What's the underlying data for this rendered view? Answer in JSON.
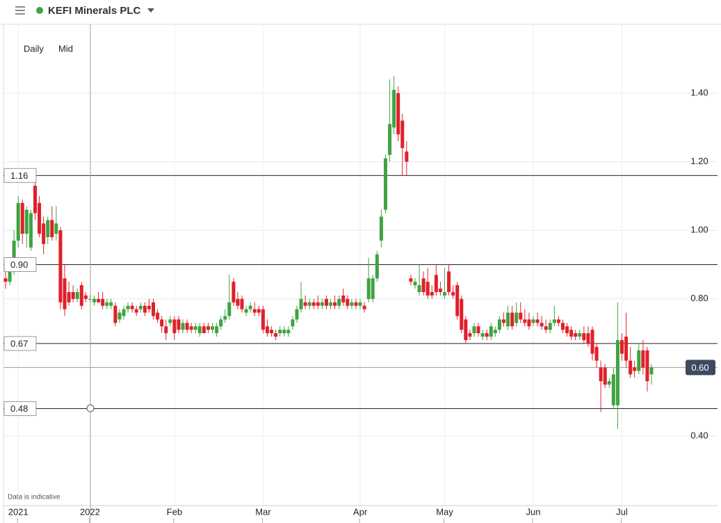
{
  "chart_data": {
    "type": "candlestick",
    "title": "KEFI Minerals PLC",
    "interval": "Daily",
    "price_type": "Mid",
    "footnote": "Data is indicative",
    "up_color": "#3fa33f",
    "down_color": "#e0202a",
    "ylim": [
      0.2,
      1.6
    ],
    "yticks": [
      {
        "value": 0.4,
        "label": "0.40"
      },
      {
        "value": 0.8,
        "label": "0.80"
      },
      {
        "value": 1.0,
        "label": "1.00"
      },
      {
        "value": 1.2,
        "label": "1.20"
      },
      {
        "value": 1.4,
        "label": "1.40"
      }
    ],
    "grid": true,
    "levels": [
      {
        "value": 1.16,
        "label": "1.16"
      },
      {
        "value": 0.9,
        "label": "0.90"
      },
      {
        "value": 0.67,
        "label": "0.67"
      },
      {
        "value": 0.48,
        "label": "0.48"
      }
    ],
    "last_price": {
      "value": 0.6,
      "label": "0.60"
    },
    "categories": [
      null,
      null,
      null,
      "2021",
      null,
      null,
      null,
      null,
      null,
      null,
      null,
      null,
      null,
      null,
      null,
      null,
      null,
      null,
      null,
      null,
      "2022",
      null,
      null,
      null,
      null,
      null,
      null,
      null,
      null,
      null,
      null,
      null,
      null,
      null,
      null,
      null,
      null,
      null,
      null,
      null,
      "Feb",
      null,
      null,
      null,
      null,
      null,
      null,
      null,
      null,
      null,
      null,
      null,
      null,
      null,
      null,
      null,
      null,
      null,
      null,
      null,
      null,
      "Mar",
      null,
      null,
      null,
      null,
      null,
      null,
      null,
      null,
      null,
      null,
      null,
      null,
      null,
      null,
      null,
      null,
      null,
      null,
      null,
      null,
      null,
      null,
      "Apr",
      null,
      null,
      null,
      null,
      null,
      null,
      null,
      null,
      null,
      null,
      null,
      null,
      null,
      null,
      null,
      null,
      null,
      null,
      null,
      "May",
      null,
      null,
      null,
      null,
      null,
      null,
      null,
      null,
      null,
      null,
      null,
      null,
      null,
      null,
      null,
      null,
      null,
      null,
      null,
      null,
      "Jun",
      null,
      null,
      null,
      null,
      null,
      null,
      null,
      null,
      null,
      null,
      null,
      null,
      null,
      null,
      null,
      null,
      null,
      null,
      null,
      null,
      "Jul",
      null,
      null,
      null,
      null,
      null,
      null,
      null
    ],
    "open": [
      0.86,
      0.85,
      0.88,
      0.97,
      1.08,
      0.99,
      0.95,
      1.13,
      1.08,
      1.02,
      0.98,
      1.03,
      0.99,
      1.0,
      0.86,
      0.82,
      0.82,
      0.8,
      0.84,
      0.81,
      0.8,
      0.79,
      0.8,
      0.8,
      0.78,
      0.78,
      0.78,
      0.74,
      0.75,
      0.77,
      0.78,
      0.77,
      0.77,
      0.78,
      0.78,
      0.79,
      0.76,
      0.74,
      0.72,
      0.73,
      0.74,
      0.74,
      0.71,
      0.73,
      0.72,
      0.71,
      0.7,
      0.72,
      0.72,
      0.71,
      0.7,
      0.72,
      0.74,
      0.75,
      0.85,
      0.8,
      0.8,
      0.76,
      0.77,
      0.77,
      0.77,
      0.77,
      0.72,
      0.71,
      0.7,
      0.7,
      0.7,
      0.7,
      0.72,
      0.74,
      0.77,
      0.79,
      0.78,
      0.79,
      0.79,
      0.78,
      0.8,
      0.78,
      0.79,
      0.78,
      0.81,
      0.8,
      0.78,
      0.79,
      0.78,
      0.78,
      0.8,
      0.8,
      0.86,
      0.97,
      1.06,
      1.22,
      1.3,
      1.4,
      1.32,
      1.23,
      0.86,
      0.84,
      0.82,
      0.86,
      0.85,
      0.82,
      0.87,
      0.83,
      0.81,
      0.88,
      0.82,
      0.84,
      0.8,
      0.74,
      0.7,
      0.7,
      0.72,
      0.69,
      0.7,
      0.69,
      0.7,
      0.71,
      0.74,
      0.72,
      0.76,
      0.73,
      0.76,
      0.74,
      0.74,
      0.73,
      0.74,
      0.73,
      0.72,
      0.71,
      0.73,
      0.74,
      0.73,
      0.72,
      0.71,
      0.7,
      0.69,
      0.7,
      0.7,
      0.71,
      0.66,
      0.6,
      0.6,
      0.55,
      0.49,
      0.49,
      0.68,
      0.69,
      0.62,
      0.6,
      0.59,
      0.65,
      0.65,
      0.58
    ],
    "high": [
      0.88,
      0.9,
      1.0,
      1.1,
      1.09,
      1.07,
      1.06,
      1.16,
      1.1,
      1.04,
      1.04,
      1.07,
      1.07,
      1.01,
      0.9,
      0.85,
      0.84,
      0.83,
      0.85,
      0.82,
      0.81,
      0.81,
      0.82,
      0.82,
      0.8,
      0.8,
      0.79,
      0.77,
      0.78,
      0.79,
      0.79,
      0.78,
      0.79,
      0.79,
      0.8,
      0.8,
      0.77,
      0.75,
      0.74,
      0.75,
      0.75,
      0.75,
      0.74,
      0.74,
      0.73,
      0.73,
      0.73,
      0.73,
      0.73,
      0.73,
      0.73,
      0.75,
      0.77,
      0.87,
      0.86,
      0.82,
      0.81,
      0.78,
      0.79,
      0.79,
      0.78,
      0.78,
      0.74,
      0.72,
      0.71,
      0.72,
      0.72,
      0.72,
      0.75,
      0.78,
      0.85,
      0.81,
      0.8,
      0.8,
      0.81,
      0.8,
      0.81,
      0.8,
      0.81,
      0.81,
      0.83,
      0.81,
      0.8,
      0.8,
      0.8,
      0.79,
      0.92,
      0.87,
      0.94,
      1.06,
      1.22,
      1.44,
      1.45,
      1.42,
      1.34,
      1.26,
      0.87,
      0.86,
      0.9,
      0.88,
      0.89,
      0.84,
      0.9,
      0.85,
      0.89,
      0.9,
      0.84,
      0.85,
      0.81,
      0.75,
      0.71,
      0.73,
      0.73,
      0.71,
      0.71,
      0.73,
      0.72,
      0.75,
      0.76,
      0.78,
      0.78,
      0.79,
      0.79,
      0.77,
      0.76,
      0.75,
      0.76,
      0.75,
      0.74,
      0.74,
      0.78,
      0.75,
      0.74,
      0.73,
      0.72,
      0.71,
      0.71,
      0.72,
      0.72,
      0.72,
      0.67,
      0.62,
      0.61,
      0.57,
      0.6,
      0.79,
      0.7,
      0.76,
      0.66,
      0.62,
      0.67,
      0.68,
      0.66,
      0.61
    ],
    "low": [
      0.83,
      0.84,
      0.87,
      0.95,
      0.96,
      0.95,
      0.94,
      1.03,
      0.98,
      0.93,
      0.96,
      0.97,
      0.97,
      0.77,
      0.75,
      0.78,
      0.79,
      0.79,
      0.77,
      0.79,
      0.79,
      0.78,
      0.79,
      0.77,
      0.77,
      0.77,
      0.72,
      0.73,
      0.74,
      0.76,
      0.76,
      0.75,
      0.76,
      0.75,
      0.76,
      0.74,
      0.73,
      0.7,
      0.68,
      0.72,
      0.68,
      0.7,
      0.7,
      0.7,
      0.7,
      0.7,
      0.69,
      0.7,
      0.7,
      0.7,
      0.69,
      0.71,
      0.73,
      0.74,
      0.78,
      0.77,
      0.76,
      0.75,
      0.76,
      0.75,
      0.75,
      0.7,
      0.69,
      0.69,
      0.68,
      0.69,
      0.69,
      0.69,
      0.71,
      0.73,
      0.76,
      0.77,
      0.77,
      0.77,
      0.77,
      0.77,
      0.77,
      0.77,
      0.77,
      0.77,
      0.78,
      0.77,
      0.77,
      0.77,
      0.77,
      0.76,
      0.79,
      0.79,
      0.85,
      0.95,
      1.05,
      1.2,
      1.28,
      1.26,
      1.16,
      1.16,
      0.84,
      0.83,
      0.81,
      0.81,
      0.8,
      0.8,
      0.81,
      0.81,
      0.8,
      0.81,
      0.8,
      0.74,
      0.7,
      0.67,
      0.68,
      0.69,
      0.69,
      0.68,
      0.68,
      0.68,
      0.69,
      0.7,
      0.72,
      0.71,
      0.71,
      0.72,
      0.73,
      0.72,
      0.71,
      0.72,
      0.72,
      0.71,
      0.7,
      0.7,
      0.72,
      0.72,
      0.7,
      0.69,
      0.68,
      0.68,
      0.68,
      0.67,
      0.66,
      0.62,
      0.6,
      0.47,
      0.54,
      0.54,
      0.48,
      0.42,
      0.62,
      0.6,
      0.57,
      0.57,
      0.58,
      0.58,
      0.53,
      0.55
    ],
    "close": [
      0.85,
      0.88,
      0.97,
      1.08,
      0.99,
      1.06,
      1.05,
      1.05,
      0.99,
      0.96,
      1.03,
      0.98,
      1.02,
      0.79,
      0.77,
      0.79,
      0.8,
      0.82,
      0.78,
      0.8,
      0.8,
      0.8,
      0.79,
      0.78,
      0.79,
      0.79,
      0.73,
      0.76,
      0.77,
      0.78,
      0.77,
      0.76,
      0.78,
      0.76,
      0.77,
      0.75,
      0.74,
      0.72,
      0.7,
      0.74,
      0.7,
      0.71,
      0.73,
      0.71,
      0.71,
      0.72,
      0.72,
      0.7,
      0.71,
      0.72,
      0.72,
      0.74,
      0.75,
      0.79,
      0.79,
      0.78,
      0.77,
      0.77,
      0.78,
      0.76,
      0.76,
      0.71,
      0.7,
      0.7,
      0.69,
      0.71,
      0.71,
      0.71,
      0.74,
      0.77,
      0.8,
      0.78,
      0.79,
      0.78,
      0.78,
      0.79,
      0.78,
      0.79,
      0.78,
      0.8,
      0.79,
      0.78,
      0.79,
      0.78,
      0.79,
      0.77,
      0.86,
      0.86,
      0.93,
      1.04,
      1.21,
      1.31,
      1.41,
      1.28,
      1.24,
      1.2,
      0.85,
      0.85,
      0.84,
      0.82,
      0.81,
      0.81,
      0.82,
      0.82,
      0.82,
      0.82,
      0.81,
      0.75,
      0.71,
      0.68,
      0.69,
      0.72,
      0.7,
      0.7,
      0.69,
      0.72,
      0.71,
      0.74,
      0.73,
      0.76,
      0.72,
      0.76,
      0.74,
      0.73,
      0.72,
      0.74,
      0.73,
      0.72,
      0.71,
      0.73,
      0.74,
      0.73,
      0.71,
      0.7,
      0.69,
      0.69,
      0.7,
      0.68,
      0.67,
      0.64,
      0.62,
      0.56,
      0.55,
      0.56,
      0.58,
      0.68,
      0.64,
      0.62,
      0.58,
      0.59,
      0.65,
      0.6,
      0.56,
      0.6
    ]
  }
}
